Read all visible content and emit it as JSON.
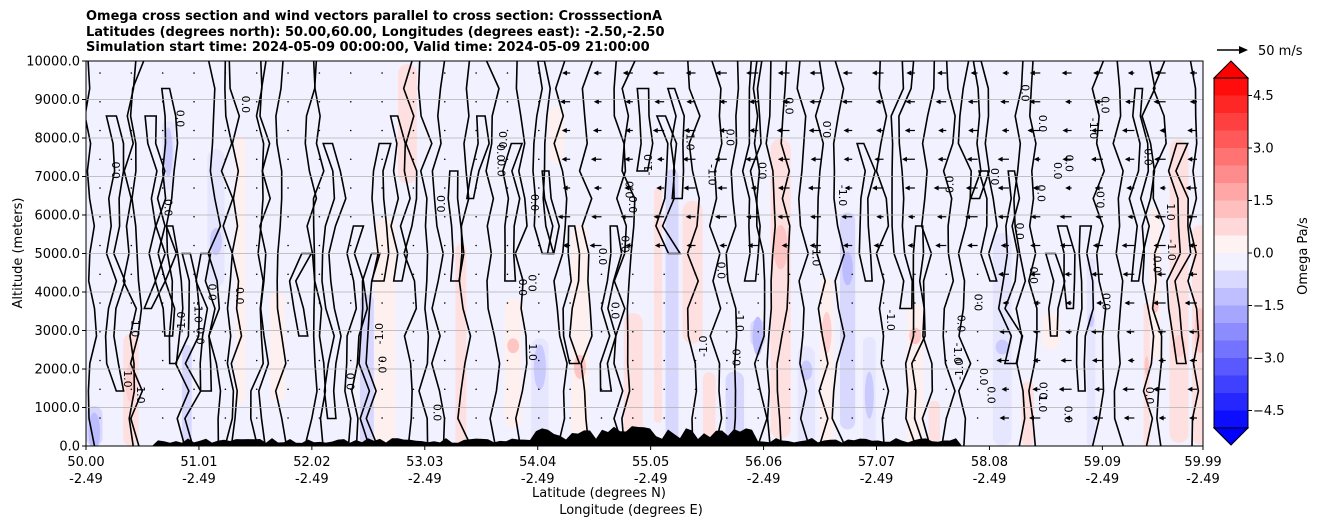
{
  "chart_data": {
    "type": "contour",
    "title_lines": [
      "Omega cross section and wind vectors parallel to cross section: CrosssectionA",
      "Latitudes (degrees north): 50.00,60.00, Longitudes (degrees east): -2.50,-2.50",
      "Simulation start time: 2024-05-09 00:00:00, Valid time: 2024-05-09 21:00:00"
    ],
    "ylabel": "Altitude (meters)",
    "xlabel_1": "Latitude (degrees N)",
    "xlabel_2": "Longitude (degrees E)",
    "ylim": [
      0,
      10000
    ],
    "y_ticks": [
      "0.0",
      "1000.0",
      "2000.0",
      "3000.0",
      "4000.0",
      "5000.0",
      "6000.0",
      "7000.0",
      "8000.0",
      "9000.0",
      "10000.0"
    ],
    "x_ticks": [
      {
        "lat": "50.00",
        "lon": "-2.49"
      },
      {
        "lat": "51.01",
        "lon": "-2.49"
      },
      {
        "lat": "52.02",
        "lon": "-2.49"
      },
      {
        "lat": "53.03",
        "lon": "-2.49"
      },
      {
        "lat": "54.04",
        "lon": "-2.49"
      },
      {
        "lat": "55.05",
        "lon": "-2.49"
      },
      {
        "lat": "56.06",
        "lon": "-2.49"
      },
      {
        "lat": "57.07",
        "lon": "-2.49"
      },
      {
        "lat": "58.08",
        "lon": "-2.49"
      },
      {
        "lat": "59.09",
        "lon": "-2.49"
      },
      {
        "lat": "59.99",
        "lon": "-2.49"
      }
    ],
    "colorbar": {
      "label": "Omega Pa/s",
      "range": [
        -5.0,
        5.0
      ],
      "ticks": [
        "−4.5",
        "−3.0",
        "−1.5",
        "0.0",
        "1.5",
        "3.0",
        "4.5"
      ],
      "tick_values": [
        -4.5,
        -3.0,
        -1.5,
        0.0,
        1.5,
        3.0,
        4.5
      ],
      "colormap": "bwr"
    },
    "quiver_key": "50 m/s",
    "contour_labels": [
      "0.0",
      "1.0",
      "-1.0"
    ],
    "colors": {
      "positive": "#ff0000",
      "negative": "#0000ff",
      "terrain": "#000000",
      "grid": "#b0b0b0"
    }
  }
}
